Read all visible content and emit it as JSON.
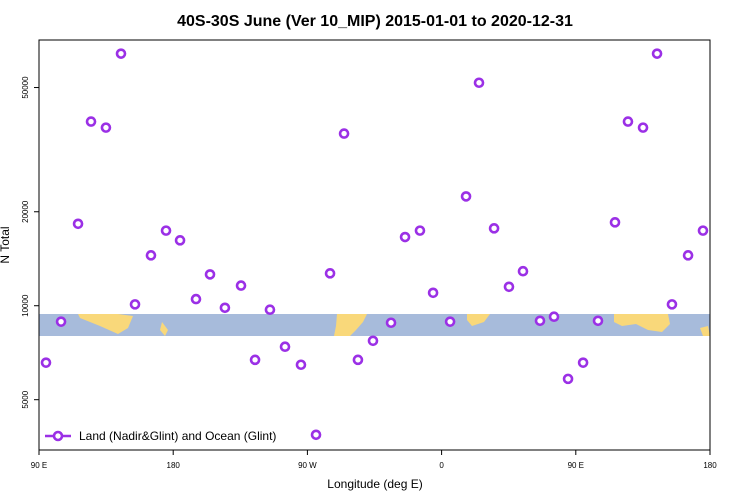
{
  "chart_data": {
    "type": "scatter",
    "title": "40S-30S June (Ver 10_MIP)   2015-01-01 to 2020-12-31",
    "x_label": "Longitude (deg E)",
    "y_label": "N Total",
    "x": [
      94.7,
      104.8,
      116.2,
      124.9,
      134.9,
      145,
      154.4,
      165.1,
      175.2,
      184.6,
      195.3,
      204.7,
      214.7,
      225.5,
      234.9,
      244.9,
      255,
      265.7,
      275.8,
      285.2,
      294.6,
      303.9,
      314,
      326.1,
      335.5,
      345.5,
      354.3,
      365.7,
      376.4,
      385.1,
      395.2,
      405.2,
      414.6,
      426,
      435.4,
      444.8,
      454.9,
      464.9,
      476.3,
      485,
      495.1,
      504.5,
      514.5,
      525.3,
      535.3
    ],
    "series": [
      {
        "name": "Land (Nadir&Glint) and Ocean (Glint)",
        "color": "#9b30e6",
        "values": [
          6570,
          8890,
          18300,
          38900,
          37200,
          64200,
          10100,
          14500,
          17400,
          16200,
          10500,
          12600,
          9850,
          11600,
          6710,
          9710,
          7390,
          6470,
          3860,
          12700,
          35600,
          6710,
          7720,
          8820,
          16600,
          17400,
          11000,
          8890,
          22400,
          51800,
          17700,
          11500,
          12900,
          8950,
          9220,
          5830,
          6570,
          8950,
          18500,
          38900,
          37200,
          64200,
          10100,
          14500,
          17400
        ]
      }
    ],
    "xlim": [
      90,
      540
    ],
    "ylim": [
      3450,
      71000
    ],
    "log_y": true,
    "xticks": [
      {
        "value": 90,
        "label": "90 E"
      },
      180,
      {
        "value": 270,
        "label": "90 W"
      },
      {
        "value": 360,
        "label": "0"
      },
      {
        "value": 450,
        "label": "90 E"
      },
      {
        "value": 540,
        "label": "180"
      }
    ],
    "yticks": [
      5000,
      10000,
      20000,
      50000
    ],
    "legend": "bottom-left"
  }
}
